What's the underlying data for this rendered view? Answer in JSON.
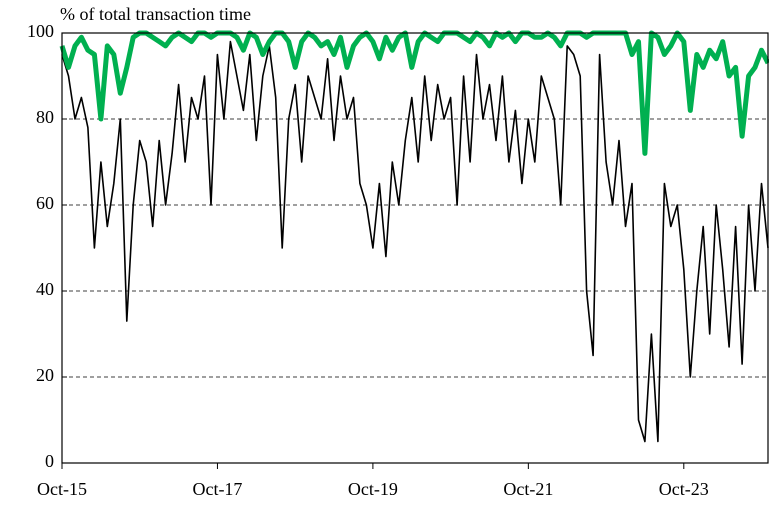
{
  "chart_data": {
    "type": "line",
    "ylabel": "% of total transaction time",
    "categories": [
      "Oct-15",
      null,
      null,
      null,
      null,
      null,
      null,
      null,
      null,
      null,
      null,
      null,
      null,
      null,
      null,
      null,
      null,
      null,
      null,
      null,
      null,
      null,
      null,
      null,
      "Oct-17",
      null,
      null,
      null,
      null,
      null,
      null,
      null,
      null,
      null,
      null,
      null,
      null,
      null,
      null,
      null,
      null,
      null,
      null,
      null,
      null,
      null,
      null,
      null,
      "Oct-19",
      null,
      null,
      null,
      null,
      null,
      null,
      null,
      null,
      null,
      null,
      null,
      null,
      null,
      null,
      null,
      null,
      null,
      null,
      null,
      null,
      null,
      null,
      null,
      "Oct-21",
      null,
      null,
      null,
      null,
      null,
      null,
      null,
      null,
      null,
      null,
      null,
      null,
      null,
      null,
      null,
      null,
      null,
      null,
      null,
      null,
      null,
      null,
      null,
      "Oct-23",
      null,
      null,
      null,
      null,
      null,
      null,
      null,
      null,
      null,
      null,
      null,
      null,
      null
    ],
    "series": [
      {
        "color": "#000000",
        "values": [
          95,
          90,
          80,
          85,
          78,
          50,
          70,
          55,
          65,
          80,
          33,
          60,
          75,
          70,
          55,
          75,
          60,
          72,
          88,
          70,
          85,
          80,
          90,
          60,
          95,
          80,
          98,
          90,
          82,
          95,
          75,
          90,
          97,
          85,
          50,
          80,
          88,
          70,
          90,
          85,
          80,
          94,
          75,
          90,
          80,
          85,
          65,
          60,
          50,
          65,
          48,
          70,
          60,
          75,
          85,
          70,
          90,
          75,
          88,
          80,
          85,
          60,
          90,
          70,
          95,
          80,
          88,
          75,
          90,
          70,
          82,
          65,
          80,
          70,
          90,
          85,
          80,
          60,
          97,
          95,
          90,
          40,
          25,
          95,
          70,
          60,
          75,
          55,
          65,
          10,
          5,
          30,
          5,
          65,
          55,
          60,
          45,
          20,
          40,
          55,
          30,
          60,
          45,
          27,
          55,
          23,
          60,
          40,
          65,
          50
        ]
      },
      {
        "color": "#00b050",
        "values": [
          97,
          92,
          97,
          99,
          96,
          95,
          80,
          97,
          95,
          86,
          92,
          99,
          100,
          100,
          99,
          98,
          97,
          99,
          100,
          99,
          98,
          100,
          100,
          99,
          100,
          100,
          100,
          99,
          96,
          100,
          99,
          95,
          98,
          100,
          100,
          98,
          92,
          98,
          100,
          99,
          97,
          98,
          95,
          99,
          92,
          97,
          99,
          100,
          98,
          94,
          99,
          96,
          99,
          100,
          92,
          98,
          100,
          99,
          98,
          100,
          100,
          100,
          99,
          98,
          100,
          99,
          97,
          100,
          99,
          100,
          98,
          100,
          100,
          99,
          99,
          100,
          99,
          97,
          100,
          100,
          100,
          99,
          100,
          100,
          100,
          100,
          100,
          100,
          95,
          98,
          72,
          100,
          99,
          95,
          97,
          100,
          98,
          82,
          95,
          92,
          96,
          94,
          98,
          90,
          92,
          76,
          90,
          92,
          96,
          93
        ]
      }
    ],
    "ylim": [
      0,
      100
    ],
    "yticks": [
      0,
      20,
      40,
      60,
      80,
      100
    ],
    "grid": true
  }
}
